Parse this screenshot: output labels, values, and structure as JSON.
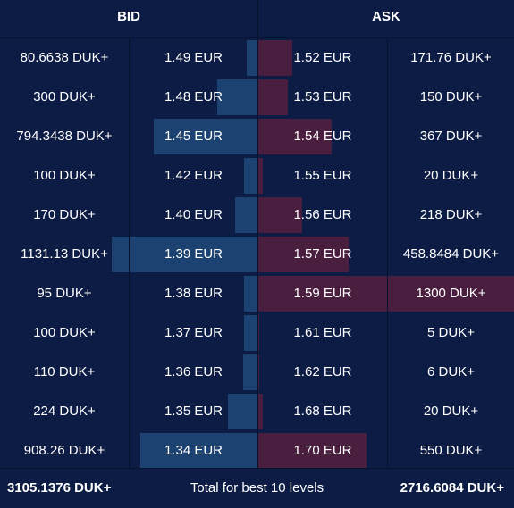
{
  "header": {
    "bid_label": "BID",
    "ask_label": "ASK"
  },
  "colors": {
    "background": "#0d1c44",
    "bid_bar": "#1b4270",
    "ask_bar": "#4a1e3e",
    "divider": "#07122e"
  },
  "rows": [
    {
      "bid_qty": "80.6638 DUK+",
      "bid_price": "1.49 EUR",
      "ask_price": "1.52 EUR",
      "ask_qty": "171.76 DUK+",
      "bid_depth_pct": 4.2,
      "ask_depth_pct": 13.2
    },
    {
      "bid_qty": "300 DUK+",
      "bid_price": "1.48 EUR",
      "ask_price": "1.53 EUR",
      "ask_qty": "150 DUK+",
      "bid_depth_pct": 15.6,
      "ask_depth_pct": 11.5
    },
    {
      "bid_qty": "794.3438 DUK+",
      "bid_price": "1.45 EUR",
      "ask_price": "1.54 EUR",
      "ask_qty": "367 DUK+",
      "bid_depth_pct": 40.3,
      "ask_depth_pct": 28.5
    },
    {
      "bid_qty": "100 DUK+",
      "bid_price": "1.42 EUR",
      "ask_price": "1.55 EUR",
      "ask_qty": "20 DUK+",
      "bid_depth_pct": 5.2,
      "ask_depth_pct": 1.6
    },
    {
      "bid_qty": "170 DUK+",
      "bid_price": "1.40 EUR",
      "ask_price": "1.56 EUR",
      "ask_qty": "218 DUK+",
      "bid_depth_pct": 8.7,
      "ask_depth_pct": 17.0
    },
    {
      "bid_qty": "1131.13 DUK+",
      "bid_price": "1.39 EUR",
      "ask_price": "1.57 EUR",
      "ask_qty": "458.8484 DUK+",
      "bid_depth_pct": 56.9,
      "ask_depth_pct": 35.3
    },
    {
      "bid_qty": "95 DUK+",
      "bid_price": "1.38 EUR",
      "ask_price": "1.59 EUR",
      "ask_qty": "1300 DUK+",
      "bid_depth_pct": 5.2,
      "ask_depth_pct": 100
    },
    {
      "bid_qty": "100 DUK+",
      "bid_price": "1.37 EUR",
      "ask_price": "1.61 EUR",
      "ask_qty": "5 DUK+",
      "bid_depth_pct": 5.2,
      "ask_depth_pct": 0.4
    },
    {
      "bid_qty": "110 DUK+",
      "bid_price": "1.36 EUR",
      "ask_price": "1.62 EUR",
      "ask_qty": "6 DUK+",
      "bid_depth_pct": 5.6,
      "ask_depth_pct": 0.5
    },
    {
      "bid_qty": "224 DUK+",
      "bid_price": "1.35 EUR",
      "ask_price": "1.68 EUR",
      "ask_qty": "20 DUK+",
      "bid_depth_pct": 11.5,
      "ask_depth_pct": 1.6
    },
    {
      "bid_qty": "908.26 DUK+",
      "bid_price": "1.34 EUR",
      "ask_price": "1.70 EUR",
      "ask_qty": "550 DUK+",
      "bid_depth_pct": 45.5,
      "ask_depth_pct": 42.3
    }
  ],
  "footer": {
    "bid_total": "3105.1376 DUK+",
    "label": "Total for best 10 levels",
    "ask_total": "2716.6084 DUK+"
  }
}
